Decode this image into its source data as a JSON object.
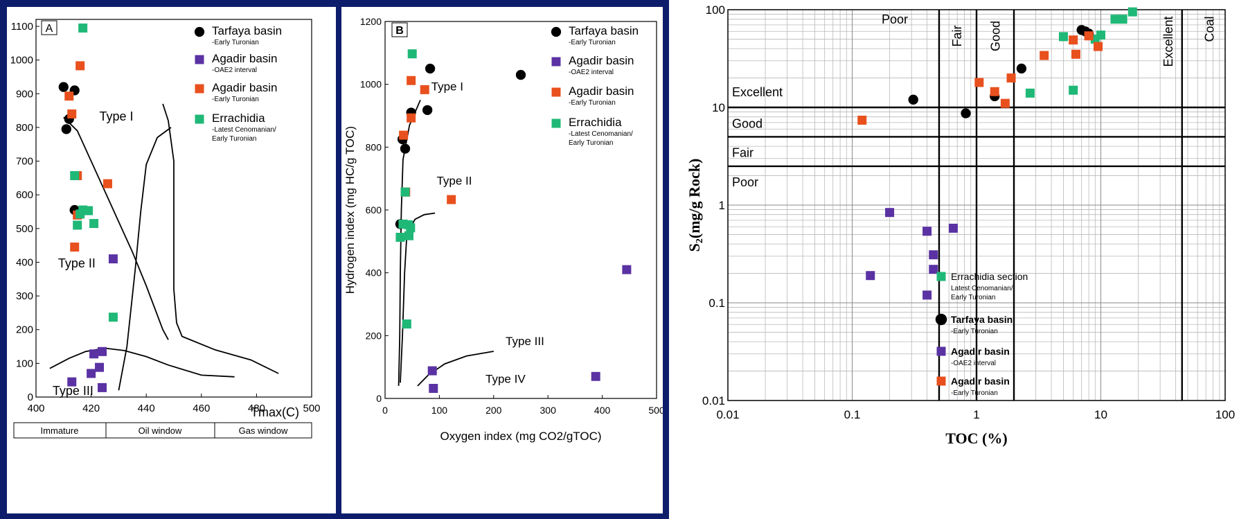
{
  "colors": {
    "background": "#0e1d6b",
    "tarfaya": "#000000",
    "agadir_oae2": "#5a32a3",
    "agadir_turonian": "#e8501e",
    "errachidia": "#1fb877"
  },
  "chart_data": [
    {
      "id": "A",
      "type": "scatter",
      "panel_label": "A",
      "xlabel": "Tmax(C)",
      "ylabel": "",
      "xlim": [
        400,
        500
      ],
      "ylim": [
        0,
        1100
      ],
      "xticks": [
        "400",
        "420",
        "440",
        "460",
        "480",
        "500"
      ],
      "yticks": [
        "0",
        "100",
        "200",
        "300",
        "400",
        "500",
        "600",
        "700",
        "800",
        "900",
        "1000",
        "1100"
      ],
      "zones": [
        "Immature",
        "Oil window",
        "Gas window"
      ],
      "annotations": [
        "Type I",
        "Type II",
        "Type III"
      ],
      "series": [
        {
          "name": "Tarfaya basin",
          "sub": "-Early Turonian",
          "marker": "circle",
          "color": "#000000",
          "points": [
            [
              410,
              920
            ],
            [
              411,
              795
            ],
            [
              412,
              825
            ],
            [
              414,
              910
            ],
            [
              414,
              555
            ]
          ]
        },
        {
          "name": "Agadir basin",
          "sub": "-OAE2 interval",
          "marker": "square",
          "color": "#5a32a3",
          "points": [
            [
              413,
              45
            ],
            [
              420,
              70
            ],
            [
              421,
              128
            ],
            [
              423,
              88
            ],
            [
              424,
              135
            ],
            [
              424,
              28
            ],
            [
              428,
              410
            ]
          ]
        },
        {
          "name": "Agadir basin",
          "sub": "-Early Turonian",
          "marker": "square",
          "color": "#e8501e",
          "points": [
            [
              412,
              893
            ],
            [
              413,
              840
            ],
            [
              416,
              983
            ],
            [
              415,
              657
            ],
            [
              415,
              540
            ],
            [
              414,
              445
            ],
            [
              426,
              633
            ]
          ]
        },
        {
          "name": "Errachidia",
          "sub": "-Latest Cenomanian/ Early Turonian",
          "marker": "square",
          "color": "#1fb877",
          "points": [
            [
              417,
              1095
            ],
            [
              414,
              657
            ],
            [
              417,
              555
            ],
            [
              419,
              553
            ],
            [
              416,
              543
            ],
            [
              415,
              510
            ],
            [
              421,
              515
            ],
            [
              428,
              237
            ]
          ]
        }
      ]
    },
    {
      "id": "B",
      "type": "scatter",
      "panel_label": "B",
      "xlabel": "Oxygen index (mg CO2/gTOC)",
      "ylabel": "Hydrogen index (mg HC/g TOC)",
      "xlim": [
        0,
        500
      ],
      "ylim": [
        0,
        1200
      ],
      "xticks": [
        "0",
        "100",
        "200",
        "300",
        "400",
        "500"
      ],
      "yticks": [
        "0",
        "200",
        "400",
        "600",
        "800",
        "1000",
        "1200"
      ],
      "annotations": [
        "Type I",
        "Type II",
        "Type III",
        "Type IV"
      ],
      "series": [
        {
          "name": "Tarfaya basin",
          "sub": "-Early Turonian",
          "marker": "circle",
          "color": "#000000",
          "points": [
            [
              83,
              1050
            ],
            [
              48,
              910
            ],
            [
              78,
              918
            ],
            [
              32,
              825
            ],
            [
              37,
              795
            ],
            [
              28,
              555
            ],
            [
              250,
              1030
            ]
          ]
        },
        {
          "name": "Agadir basin",
          "sub": "-OAE2 interval",
          "marker": "square",
          "color": "#5a32a3",
          "points": [
            [
              445,
              410
            ],
            [
              388,
              70
            ],
            [
              87,
              88
            ],
            [
              89,
              32
            ]
          ]
        },
        {
          "name": "Agadir basin",
          "sub": "-Early Turonian",
          "marker": "square",
          "color": "#e8501e",
          "points": [
            [
              48,
              1012
            ],
            [
              73,
              983
            ],
            [
              48,
              893
            ],
            [
              34,
              838
            ],
            [
              38,
              657
            ],
            [
              122,
              633
            ]
          ]
        },
        {
          "name": "Errachidia",
          "sub": "-Latest Cenomanian/ Early Turonian",
          "marker": "square",
          "color": "#1fb877",
          "points": [
            [
              50,
              1097
            ],
            [
              37,
              657
            ],
            [
              33,
              555
            ],
            [
              43,
              553
            ],
            [
              47,
              543
            ],
            [
              28,
              513
            ],
            [
              44,
              518
            ],
            [
              40,
              237
            ]
          ]
        }
      ]
    },
    {
      "id": "C",
      "type": "scatter",
      "xlabel": "TOC (%)",
      "ylabel": "S2(mg/g Rock)",
      "xscale": "log",
      "yscale": "log",
      "xlim": [
        0.01,
        100
      ],
      "ylim": [
        0.01,
        100
      ],
      "xticks": [
        "0.01",
        "0.1",
        "1",
        "10",
        "100"
      ],
      "yticks": [
        "0.01",
        "0.1",
        "1",
        "10",
        "100"
      ],
      "zones_x": [
        "Poor",
        "Fair",
        "Good",
        "Excellent",
        "Coal"
      ],
      "zones_y": [
        "Excellent",
        "Good",
        "Fair",
        "Poor"
      ],
      "series": [
        {
          "name": "Errachidia section",
          "sub": "Latest Cenomanian/ Early Turonian",
          "marker": "square",
          "color": "#1fb877",
          "points": [
            [
              2.7,
              14
            ],
            [
              6,
              15
            ],
            [
              5,
              53
            ],
            [
              9,
              50
            ],
            [
              10,
              55
            ],
            [
              13,
              80
            ],
            [
              15,
              80
            ],
            [
              18,
              95
            ]
          ]
        },
        {
          "name": "Tarfaya basin",
          "sub": "-Early Turonian",
          "marker": "circle",
          "color": "#000000",
          "points": [
            [
              0.31,
              12
            ],
            [
              0.82,
              8.7
            ],
            [
              1.4,
              13
            ],
            [
              2.3,
              25
            ],
            [
              7,
              62
            ],
            [
              7.5,
              60
            ],
            [
              8,
              57
            ]
          ]
        },
        {
          "name": "Agadir basin",
          "sub": "-OAE2 interval",
          "marker": "square",
          "color": "#5a32a3",
          "points": [
            [
              0.2,
              0.84
            ],
            [
              0.14,
              0.19
            ],
            [
              0.4,
              0.54
            ],
            [
              0.45,
              0.31
            ],
            [
              0.45,
              0.22
            ],
            [
              0.4,
              0.12
            ],
            [
              0.65,
              0.58
            ]
          ]
        },
        {
          "name": "Agadir basin",
          "sub": "-Early Turonian",
          "marker": "square",
          "color": "#e8501e",
          "points": [
            [
              0.12,
              7.4
            ],
            [
              1.05,
              18
            ],
            [
              1.4,
              14.5
            ],
            [
              1.7,
              11
            ],
            [
              1.9,
              20
            ],
            [
              3.5,
              34
            ],
            [
              6,
              49
            ],
            [
              6.3,
              35
            ],
            [
              8,
              54
            ],
            [
              9.5,
              42
            ]
          ]
        }
      ]
    }
  ]
}
